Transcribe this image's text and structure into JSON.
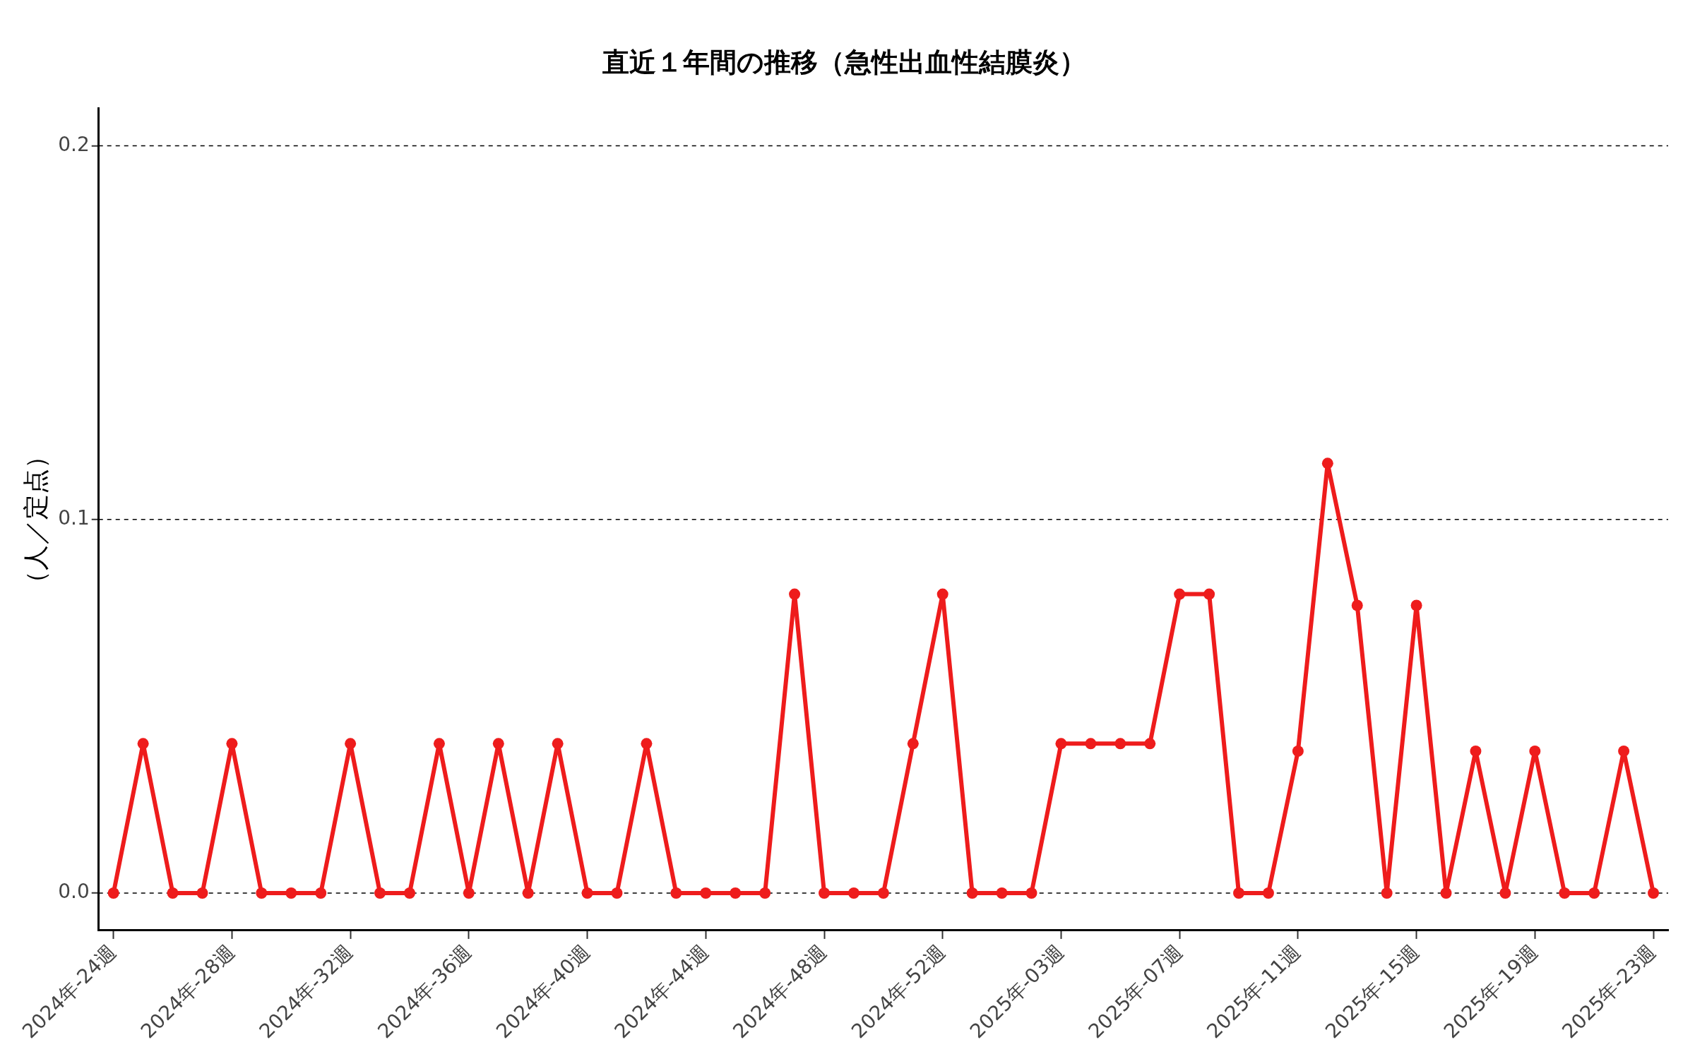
{
  "chart_data": {
    "type": "line",
    "title": "直近１年間の推移（急性出血性結膜炎）",
    "ylabel": "（人／定点）",
    "categories": [
      "2024年-24週",
      null,
      null,
      null,
      "2024年-28週",
      null,
      null,
      null,
      "2024年-32週",
      null,
      null,
      null,
      "2024年-36週",
      null,
      null,
      null,
      "2024年-40週",
      null,
      null,
      null,
      "2024年-44週",
      null,
      null,
      null,
      "2024年-48週",
      null,
      null,
      null,
      "2024年-52週",
      null,
      null,
      null,
      "2025年-03週",
      null,
      null,
      null,
      "2025年-07週",
      null,
      null,
      null,
      "2025年-11週",
      null,
      null,
      null,
      "2025年-15週",
      null,
      null,
      null,
      "2025年-19週",
      null,
      null,
      null,
      "2025年-23週"
    ],
    "series": [
      {
        "color": "#ee1c1c",
        "values": [
          0,
          0.04,
          0,
          0,
          0.04,
          0,
          0,
          0,
          0.04,
          0,
          0,
          0.04,
          0,
          0.04,
          0,
          0.04,
          0,
          0,
          0.04,
          0,
          0,
          0,
          0,
          0.08,
          0,
          0,
          0,
          0.04,
          0.08,
          0,
          0,
          0,
          0.04,
          0.04,
          0.04,
          0.04,
          0.08,
          0.08,
          0,
          0,
          0.038,
          0.115,
          0.077,
          0,
          0.077,
          0,
          0.038,
          0,
          0.038,
          0,
          0,
          0.038,
          0
        ]
      }
    ],
    "ylim": [
      -0.01,
      0.21
    ],
    "yticks": [
      {
        "value": 0,
        "label": "0.0"
      },
      {
        "value": 0.1,
        "label": "0.1"
      },
      {
        "value": 0.2,
        "label": "0.2"
      }
    ],
    "grid": "y",
    "legend": false,
    "marker": "circle",
    "line_style": "solid"
  }
}
